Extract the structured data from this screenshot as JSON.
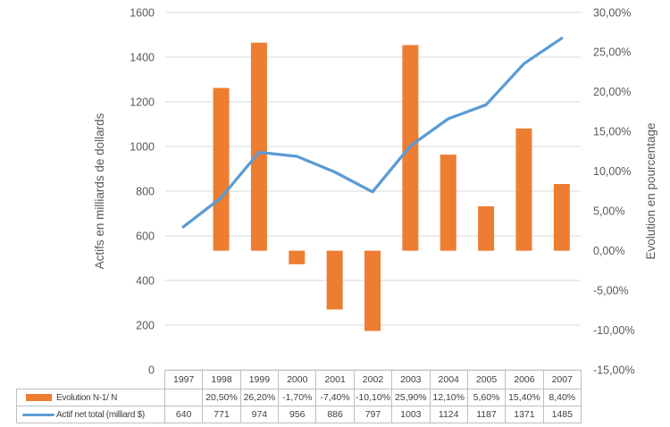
{
  "chart_data": {
    "type": "combo",
    "title": "",
    "categories": [
      "1997",
      "1998",
      "1999",
      "2000",
      "2001",
      "2002",
      "2003",
      "2004",
      "2005",
      "2006",
      "2007"
    ],
    "series": [
      {
        "name": "Evolution N-1/ N",
        "chart_type": "bar",
        "axis": "right",
        "color": "#ED7D31",
        "values": [
          null,
          20.5,
          26.2,
          -1.7,
          -7.4,
          -10.1,
          25.9,
          12.1,
          5.6,
          15.4,
          8.4
        ],
        "value_labels": [
          "",
          "20,50%",
          "26,20%",
          "-1,70%",
          "-7,40%",
          "-10,10%",
          "25,90%",
          "12,10%",
          "5,60%",
          "15,40%",
          "8,40%"
        ]
      },
      {
        "name": "Actif net total (milliard $)",
        "chart_type": "line",
        "axis": "left",
        "color": "#5B9BD5",
        "values": [
          640,
          771,
          974,
          956,
          886,
          797,
          1003,
          1124,
          1187,
          1371,
          1485
        ],
        "value_labels": [
          "640",
          "771",
          "974",
          "956",
          "886",
          "797",
          "1003",
          "1124",
          "1187",
          "1371",
          "1485"
        ]
      }
    ],
    "left_axis": {
      "title": "Actifs en milliards de dollards",
      "min": 0,
      "max": 1600,
      "step": 200,
      "tick_labels_top_down": [
        "1600",
        "1400",
        "1200",
        "1000",
        "800",
        "600",
        "400",
        "200",
        "0"
      ]
    },
    "right_axis": {
      "title": "Evolution en pourcentage",
      "min": -15,
      "max": 30,
      "step": 5,
      "tick_labels_top_down": [
        "30,00%",
        "25,00%",
        "20,00%",
        "15,00%",
        "10,00%",
        "5,00%",
        "0,00%",
        "-5,00%",
        "-10,00%",
        "-15,00%"
      ]
    },
    "grid": "horizontal-only",
    "legend_position": "left-of-data-table",
    "data_table_shown": true
  },
  "colors": {
    "bar": "#ED7D31",
    "line": "#5B9BD5",
    "gridline": "#D9D9D9",
    "axis_text": "#595959",
    "table_text": "#404040",
    "table_border": "#BFBFBF",
    "background": "#FFFFFF"
  }
}
